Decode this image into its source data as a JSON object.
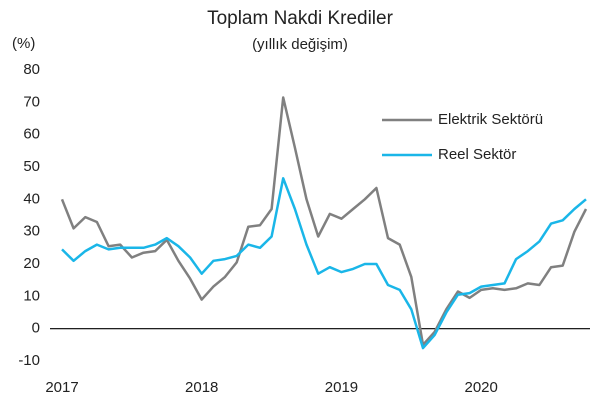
{
  "chart_data": {
    "type": "line",
    "title": "Toplam Nakdi Krediler",
    "subtitle": "(yıllık değişim)",
    "y_label": "(%)",
    "categories": [
      "2017",
      null,
      null,
      null,
      null,
      null,
      null,
      null,
      null,
      null,
      null,
      null,
      "2018",
      null,
      null,
      null,
      null,
      null,
      null,
      null,
      null,
      null,
      null,
      null,
      "2019",
      null,
      null,
      null,
      null,
      null,
      null,
      null,
      null,
      null,
      null,
      null,
      "2020",
      null,
      null,
      null,
      null,
      null,
      null,
      null,
      null,
      null
    ],
    "series": [
      {
        "name": "Elektrik Sektörü",
        "color": "#808080",
        "values": [
          40,
          31,
          34.5,
          33,
          25.5,
          26,
          22,
          23.5,
          24,
          27.5,
          21,
          15.5,
          9,
          13,
          16,
          20.5,
          31.5,
          32,
          37,
          71.5,
          56,
          40,
          28.5,
          35.5,
          34,
          37,
          40,
          43.5,
          28,
          26,
          16,
          -5,
          -1,
          6,
          11.5,
          9.5,
          12,
          12.5,
          12,
          12.5,
          14,
          13.5,
          19,
          19.5,
          30,
          37
        ]
      },
      {
        "name": "Reel Sektör",
        "color": "#1ab6e8",
        "values": [
          24.5,
          21,
          24,
          26,
          24.5,
          25,
          25,
          25,
          26,
          28,
          25.5,
          22,
          17,
          21,
          21.5,
          22.5,
          26,
          25,
          28.5,
          46.5,
          37,
          26,
          17,
          19,
          17.5,
          18.5,
          20,
          20,
          13.5,
          12,
          6,
          -6,
          -2,
          5,
          10.5,
          11,
          13,
          13.5,
          14,
          21.5,
          24,
          27,
          32.5,
          33.5,
          37,
          40
        ]
      }
    ],
    "ylim": [
      -10,
      80
    ],
    "yticks": [
      -10,
      0,
      10,
      20,
      30,
      40,
      50,
      60,
      70,
      80
    ],
    "grid": false,
    "legend": "upper right"
  }
}
